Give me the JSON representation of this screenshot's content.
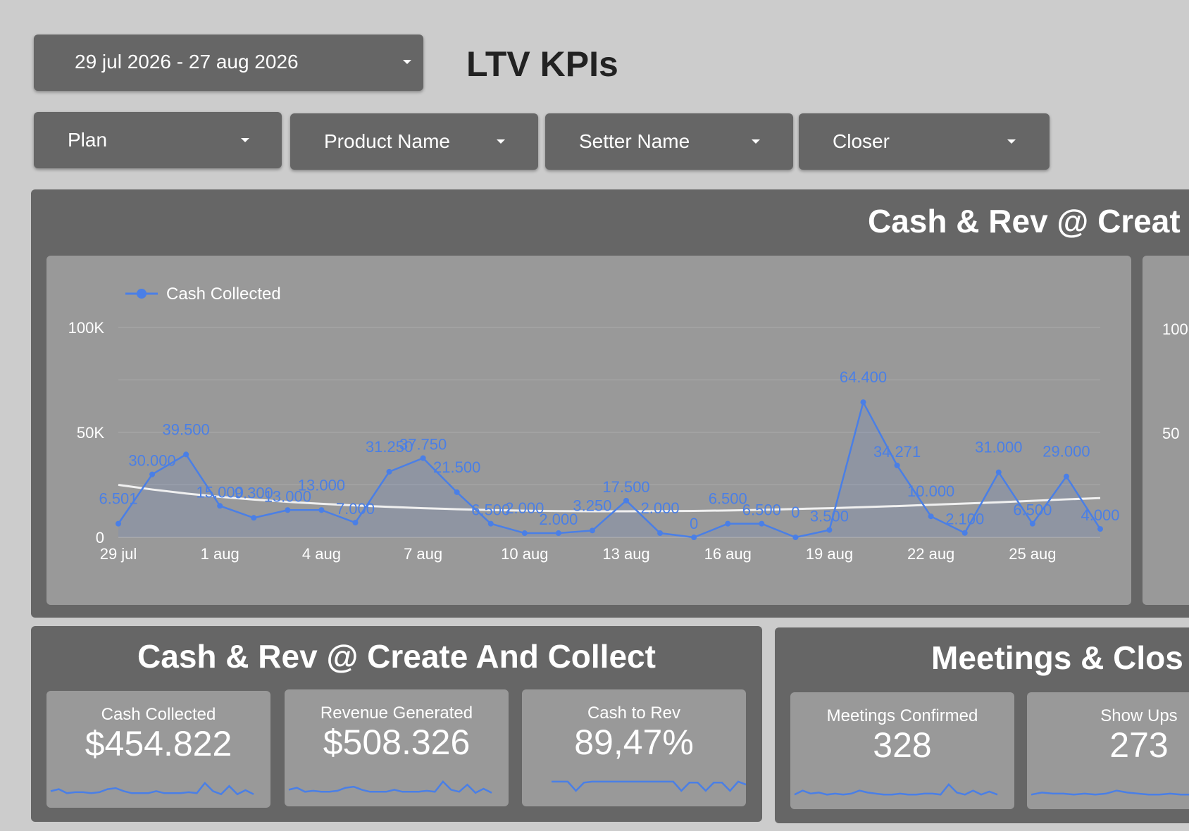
{
  "header": {
    "date_range": "29 jul 2026 - 27 aug 2026",
    "title": "LTV KPIs"
  },
  "filters": [
    "Plan",
    "Product Name",
    "Setter Name",
    "Closer"
  ],
  "main_panel": {
    "title": "Cash & Rev @ Creat",
    "right_axis_ticks": [
      "100",
      "50"
    ]
  },
  "colors": {
    "background": "#cccccc",
    "panel": "#666666",
    "card": "#999999",
    "series": "#4a7fe6",
    "trend": "#f0f0f0"
  },
  "chart_data": {
    "type": "line",
    "x": [
      "29 jul",
      "30 jul",
      "31 jul",
      "1 aug",
      "2 aug",
      "3 aug",
      "4 aug",
      "5 aug",
      "6 aug",
      "7 aug",
      "8 aug",
      "9 aug",
      "10 aug",
      "11 aug",
      "12 aug",
      "13 aug",
      "14 aug",
      "15 aug",
      "16 aug",
      "17 aug",
      "18 aug",
      "19 aug",
      "20 aug",
      "21 aug",
      "22 aug",
      "23 aug",
      "24 aug",
      "25 aug",
      "26 aug",
      "27 aug"
    ],
    "tick_labels": [
      "29 jul",
      "1 aug",
      "4 aug",
      "7 aug",
      "10 aug",
      "13 aug",
      "16 aug",
      "19 aug",
      "22 aug",
      "25 aug"
    ],
    "series": [
      {
        "name": "Cash Collected",
        "values": [
          6501,
          30000,
          39500,
          15000,
          9300,
          13000,
          13000,
          7000,
          31250,
          37750,
          21500,
          6500,
          2000,
          2000,
          3250,
          17500,
          2000,
          0,
          6500,
          6500,
          0,
          3500,
          64400,
          34271,
          10000,
          2100,
          31000,
          6500,
          29000,
          4000
        ],
        "labels": [
          "6.501",
          "30.000",
          "39.500",
          "15.000",
          "9.300",
          "13.000",
          "13.000",
          "7.000",
          "31.250",
          "37.750",
          "21.500",
          "6.500",
          "2.000",
          "2.000",
          "3.250",
          "17.500",
          "2.000",
          "0",
          "6.500",
          "6.500",
          "0",
          "3.500",
          "64.400",
          "34.271",
          "10.000",
          "2.100",
          "31.000",
          "6.500",
          "29.000",
          "4.000"
        ]
      }
    ],
    "trendline": [
      25000,
      22800,
      20900,
      19300,
      18000,
      16900,
      16000,
      15200,
      14500,
      13900,
      13400,
      13000,
      12700,
      12500,
      12400,
      12400,
      12500,
      12600,
      12800,
      13100,
      13500,
      13900,
      14400,
      14900,
      15500,
      16100,
      16700,
      17400,
      18100,
      18700
    ],
    "y_ticks": [
      "0",
      "50K",
      "100K"
    ],
    "ylim": [
      0,
      100000
    ],
    "grid": true,
    "legend": "top-left"
  },
  "create_collect_panel": {
    "title": "Cash & Rev @ Create And Collect",
    "kpis": [
      {
        "label": "Cash Collected",
        "value": "$454.822",
        "spark": [
          8,
          10,
          6,
          7,
          7,
          6,
          7,
          10,
          11,
          8,
          6,
          6,
          6,
          8,
          6,
          6,
          6,
          7,
          6,
          16,
          8,
          5,
          13,
          5,
          9,
          5
        ]
      },
      {
        "label": "Revenue Generated",
        "value": "$508.326",
        "spark": [
          8,
          10,
          6,
          7,
          6,
          6,
          7,
          10,
          11,
          8,
          6,
          6,
          6,
          8,
          6,
          6,
          6,
          7,
          6,
          16,
          8,
          6,
          13,
          5,
          9,
          5
        ]
      },
      {
        "label": "Cash to Rev",
        "value": "89,47%",
        "spark": [
          16,
          16,
          16,
          7,
          15,
          16,
          16,
          16,
          16,
          16,
          16,
          16,
          16,
          16,
          16,
          16,
          7,
          15,
          15,
          7,
          15,
          15,
          7,
          16,
          13,
          16
        ]
      }
    ]
  },
  "meetings_panel": {
    "title": "Meetings & Clos",
    "kpis": [
      {
        "label": "Meetings Confirmed",
        "value": "328",
        "spark": [
          6,
          10,
          7,
          8,
          6,
          7,
          6,
          7,
          10,
          8,
          7,
          6,
          6,
          7,
          6,
          6,
          7,
          7,
          6,
          16,
          8,
          6,
          10,
          6,
          9,
          6
        ]
      },
      {
        "label": "Show Ups",
        "value": "273",
        "spark": [
          6,
          8,
          7,
          7,
          6,
          7,
          6,
          7,
          10,
          8,
          7,
          6,
          6,
          7,
          6,
          6,
          7,
          7,
          6,
          7
        ]
      }
    ]
  }
}
